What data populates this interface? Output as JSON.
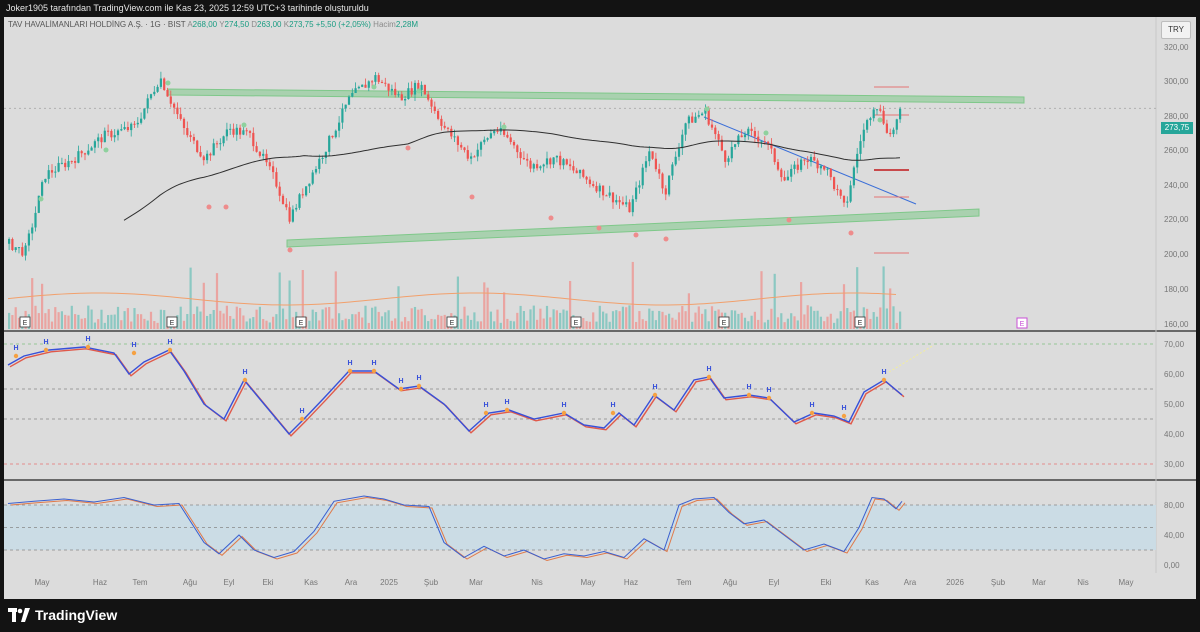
{
  "header": {
    "publisher_line": "Joker1905 tarafından TradingView.com ile Kas 23, 2025 12:59 UTC+3 tarihinde oluşturuldu"
  },
  "legend": {
    "symbol": "TAV HAVALİMANLARI HOLDİNG A.Ş. · 1G · BIST",
    "open_label": "A",
    "open": "268,00",
    "high_label": "Y",
    "high": "274,50",
    "low_label": "D",
    "low": "263,00",
    "close_label": "K",
    "close": "273,75",
    "change": "+5,50 (+2,05%)",
    "volume_label": "Hacim",
    "volume": "2,28M"
  },
  "currency_button": "TRY",
  "price_axis": [
    "320,00",
    "300,00",
    "280,00",
    "260,00",
    "240,00",
    "220,00",
    "200,00",
    "180,00",
    "160,00"
  ],
  "last_price": "273,75",
  "rsi_axis": [
    "70,00",
    "60,00",
    "50,00",
    "40,00",
    "30,00"
  ],
  "stoch_axis": [
    "80,00",
    "40,00",
    "0,00"
  ],
  "time_axis": [
    "May",
    "Haz",
    "Tem",
    "Ağu",
    "Eyl",
    "Eki",
    "Kas",
    "Ara",
    "2025",
    "Şub",
    "Mar",
    "Nis",
    "May",
    "Haz",
    "Tem",
    "Ağu",
    "Eyl",
    "Eki",
    "Kas",
    "Ara",
    "2026",
    "Şub",
    "Mar",
    "Nis",
    "May"
  ],
  "earnings_marker": "E",
  "rsi_marker": "H",
  "brand": "TradingView",
  "colors": {
    "up": "#26a69a",
    "down": "#ef5350",
    "ma_fast": "#f3ee9b",
    "ma_slow": "#2f2f2f",
    "trend_channel": "#7fc88a",
    "trendline_blue": "#3b6fd8",
    "rsi_line": "#3750d9",
    "rsi_signal": "#e0594a",
    "stoch_band": "#c9dbe6"
  }
}
